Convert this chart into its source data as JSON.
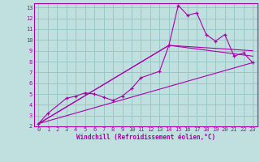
{
  "xlabel": "Windchill (Refroidissement éolien,°C)",
  "bg_color": "#c0e0e0",
  "line_color": "#aa00aa",
  "grid_color": "#98c8c8",
  "xlim": [
    -0.5,
    23.5
  ],
  "ylim": [
    2,
    13.4
  ],
  "xticks": [
    0,
    1,
    2,
    3,
    4,
    5,
    6,
    7,
    8,
    9,
    10,
    11,
    12,
    13,
    14,
    15,
    16,
    17,
    18,
    19,
    20,
    21,
    22,
    23
  ],
  "yticks": [
    2,
    3,
    4,
    5,
    6,
    7,
    8,
    9,
    10,
    11,
    12,
    13
  ],
  "line1_x": [
    0,
    1,
    3,
    4,
    5,
    6,
    7,
    8,
    9,
    10,
    11,
    13,
    14,
    15,
    16,
    17,
    18,
    19,
    20,
    21,
    22,
    23
  ],
  "line1_y": [
    2.25,
    3.2,
    4.6,
    4.8,
    5.1,
    5.0,
    4.7,
    4.4,
    4.8,
    5.5,
    6.5,
    7.1,
    9.5,
    13.2,
    12.3,
    12.5,
    10.5,
    9.9,
    10.5,
    8.5,
    8.8,
    7.9
  ],
  "line2_x": [
    0,
    23
  ],
  "line2_y": [
    2.25,
    7.9
  ],
  "line3_x": [
    0,
    14,
    23
  ],
  "line3_y": [
    2.25,
    9.5,
    9.0
  ],
  "line4_x": [
    0,
    14,
    23
  ],
  "line4_y": [
    2.25,
    9.5,
    8.5
  ]
}
